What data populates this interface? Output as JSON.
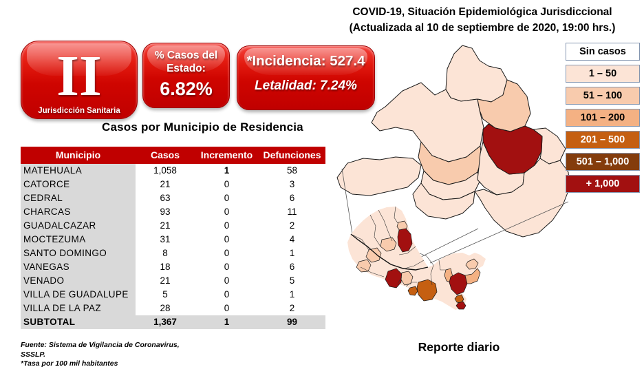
{
  "header": {
    "title_line1": "COVID-19, Situación Epidemiológica Jurisdiccional",
    "title_line2": "(Actualizada al 10 de septiembre de 2020, 19:00 hrs.)"
  },
  "badge": {
    "roman": "II",
    "label": "Jurisdicción Sanitaria"
  },
  "stats": {
    "percent_title_line1": "% Casos del",
    "percent_title_line2": "Estado:",
    "percent_value": "6.82%",
    "incidencia": "*Incidencia: 527.4",
    "letalidad": "Letalidad: 7.24%"
  },
  "table": {
    "title": "Casos por Municipio  de Residencia",
    "columns": [
      "Municipio",
      "Casos",
      "Incremento",
      "Defunciones"
    ],
    "rows": [
      {
        "municipio": "MATEHUALA",
        "casos": "1,058",
        "incremento": "1",
        "defunciones": "58"
      },
      {
        "municipio": "CATORCE",
        "casos": "21",
        "incremento": "0",
        "defunciones": "3"
      },
      {
        "municipio": "CEDRAL",
        "casos": "63",
        "incremento": "0",
        "defunciones": "6"
      },
      {
        "municipio": "CHARCAS",
        "casos": "93",
        "incremento": "0",
        "defunciones": "11"
      },
      {
        "municipio": "GUADALCAZAR",
        "casos": "21",
        "incremento": "0",
        "defunciones": "2"
      },
      {
        "municipio": "MOCTEZUMA",
        "casos": "31",
        "incremento": "0",
        "defunciones": "4"
      },
      {
        "municipio": "SANTO DOMINGO",
        "casos": "8",
        "incremento": "0",
        "defunciones": "1"
      },
      {
        "municipio": "VANEGAS",
        "casos": "18",
        "incremento": "0",
        "defunciones": "6"
      },
      {
        "municipio": "VENADO",
        "casos": "21",
        "incremento": "0",
        "defunciones": "5"
      },
      {
        "municipio": "VILLA DE GUADALUPE",
        "casos": "5",
        "incremento": "0",
        "defunciones": "1"
      },
      {
        "municipio": "VILLA DE LA PAZ",
        "casos": "28",
        "incremento": "0",
        "defunciones": "2"
      }
    ],
    "subtotal": {
      "municipio": "SUBTOTAL",
      "casos": "1,367",
      "incremento": "1",
      "defunciones": "99"
    }
  },
  "legend": {
    "items": [
      {
        "label": "Sin casos",
        "color": "#ffffff",
        "text": "#000000"
      },
      {
        "label": "1 – 50",
        "color": "#fce4d6",
        "text": "#000000"
      },
      {
        "label": "51 – 100",
        "color": "#f8cbad",
        "text": "#000000"
      },
      {
        "label": "101 – 200",
        "color": "#f4b183",
        "text": "#000000"
      },
      {
        "label": "201 – 500",
        "color": "#c55f11",
        "text": "#ffffff"
      },
      {
        "label": "501 – 1,000",
        "color": "#843c0c",
        "text": "#ffffff"
      },
      {
        "label": "+ 1,000",
        "color": "#a21010",
        "text": "#ffffff"
      }
    ]
  },
  "map": {
    "caption": "Reporte diario",
    "regions": [
      {
        "name": "MATEHUALA",
        "category": "+ 1,000"
      },
      {
        "name": "CEDRAL",
        "category": "51 – 100"
      },
      {
        "name": "CHARCAS",
        "category": "51 – 100"
      },
      {
        "name": "CATORCE",
        "category": "1 – 50"
      },
      {
        "name": "GUADALCAZAR",
        "category": "1 – 50"
      },
      {
        "name": "MOCTEZUMA",
        "category": "1 – 50"
      },
      {
        "name": "SANTO DOMINGO",
        "category": "1 – 50"
      },
      {
        "name": "VANEGAS",
        "category": "1 – 50"
      },
      {
        "name": "VENADO",
        "category": "1 – 50"
      },
      {
        "name": "VILLA DE GUADALUPE",
        "category": "1 – 50"
      },
      {
        "name": "VILLA DE LA PAZ",
        "category": "1 – 50"
      }
    ]
  },
  "footnote": {
    "lines": [
      "Fuente: Sistema de Vigilancia  de Coronavirus,",
      "SSSLP.",
      "*Tasa por 100 mil habitantes"
    ]
  }
}
